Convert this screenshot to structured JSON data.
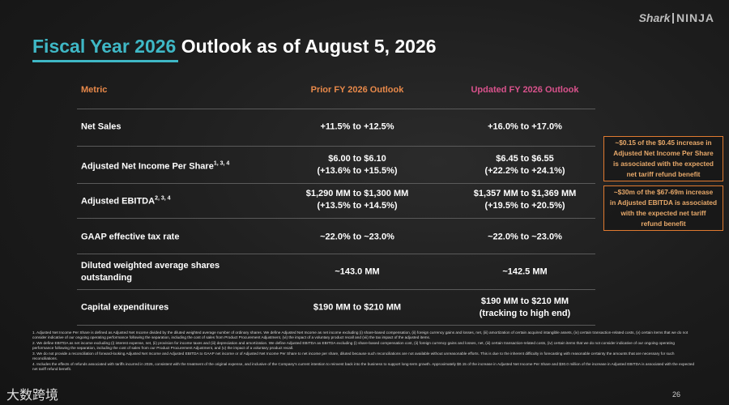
{
  "logo": {
    "left": "Shark",
    "right": "NINJA"
  },
  "title": {
    "highlight": "Fiscal Year 2026",
    "rest": "Outlook as of August 5, 2026"
  },
  "table": {
    "headers": [
      "Metric",
      "Prior FY 2026 Outlook",
      "Updated FY 2026 Outlook"
    ],
    "rows": [
      {
        "metric": [
          "Net Sales"
        ],
        "prior": [
          "+11.5% to +12.5%"
        ],
        "updated": [
          "+16.0% to +17.0%"
        ]
      },
      {
        "metric": [
          "Adjusted Net Income Per Share"
        ],
        "sup": "1, 3, 4",
        "prior": [
          "$6.00 to $6.10",
          "(+13.6% to +15.5%)"
        ],
        "updated": [
          "$6.45 to $6.55",
          "(+22.2% to +24.1%)"
        ]
      },
      {
        "metric": [
          "Adjusted EBITDA"
        ],
        "sup": "2, 3, 4",
        "prior": [
          "$1,290 MM to $1,300 MM",
          "(+13.5% to +14.5%)"
        ],
        "updated": [
          "$1,357 MM to $1,369 MM",
          "(+19.5% to +20.5%)"
        ]
      },
      {
        "metric": [
          "GAAP effective tax rate"
        ],
        "prior": [
          "~22.0% to ~23.0%"
        ],
        "updated": [
          "~22.0% to ~23.0%"
        ]
      },
      {
        "metric": [
          "Diluted weighted average shares",
          "outstanding"
        ],
        "prior": [
          "~143.0 MM"
        ],
        "updated": [
          "~142.5 MM"
        ]
      },
      {
        "metric": [
          "Capital expenditures"
        ],
        "prior": [
          "$190 MM to $210 MM"
        ],
        "updated": [
          "$190 MM to $210 MM",
          "(tracking to high end)"
        ]
      }
    ]
  },
  "callouts": [
    [
      "~$0.15 of the $0.45 increase in",
      "Adjusted Net Income Per Share",
      "is associated with the expected",
      "net tariff refund benefit"
    ],
    [
      "~$30m of the $67-69m increase",
      "in Adjusted EBITDA is associated",
      "with the expected net tariff",
      "refund benefit"
    ]
  ],
  "footnotes": [
    "1.   Adjusted Net Income Per Share is defined as Adjusted Net Income divided by the diluted weighted average number of ordinary shares. We define Adjusted Net Income as net income excluding (i) share-based compensation, (ii) foreign currency gains and losses, net, (iii) amortization of certain acquired intangible assets, (iv) certain transaction-related costs, (v) certain items that we do not consider indicative of our ongoing operating performance following the separation, including the cost of sales from Product Procurement Adjustment, (vi) the impact of a voluntary product recall and (vii) the tax impact of the adjusted items.",
    "2.   We define EBITDA as net income excluding (i) interest expense, net, (ii) provision for income taxes and (iii) depreciation and amortization. We define Adjusted EBITDA as EBITDA excluding (i) share-based compensation cost, (ii) foreign currency gains and losses, net, (iii) certain transaction-related costs, (iv) certain items that we do not consider indicative of our ongoing operating performance following the separation, including the cost of sales from our Product Procurement Adjustment, and (v) the impact of a voluntary product recall.",
    "3.   We do not provide a reconciliation of forward-looking Adjusted Net Income and Adjusted EBITDA to GAAP net income or of Adjusted Net Income Per Share to net income per share, diluted because such reconciliations are not available without unreasonable efforts. This is due to the inherent difficulty in forecasting with reasonable certainty the amounts that are necessary for such reconciliations.",
    "4.   Includes the effects of refunds associated with tariffs incurred in 2026, consistent with the treatment of the original expense, and inclusive of the Company's current intention to reinvest back into the business to support long-term growth. Approximately $0.15 of the increase in Adjusted Net Income Per Share and $30.0 million of the increase in Adjusted EBITDA is associated with the expected net tariff refund benefit."
  ],
  "page_number": "26",
  "watermark": "大数跨境"
}
